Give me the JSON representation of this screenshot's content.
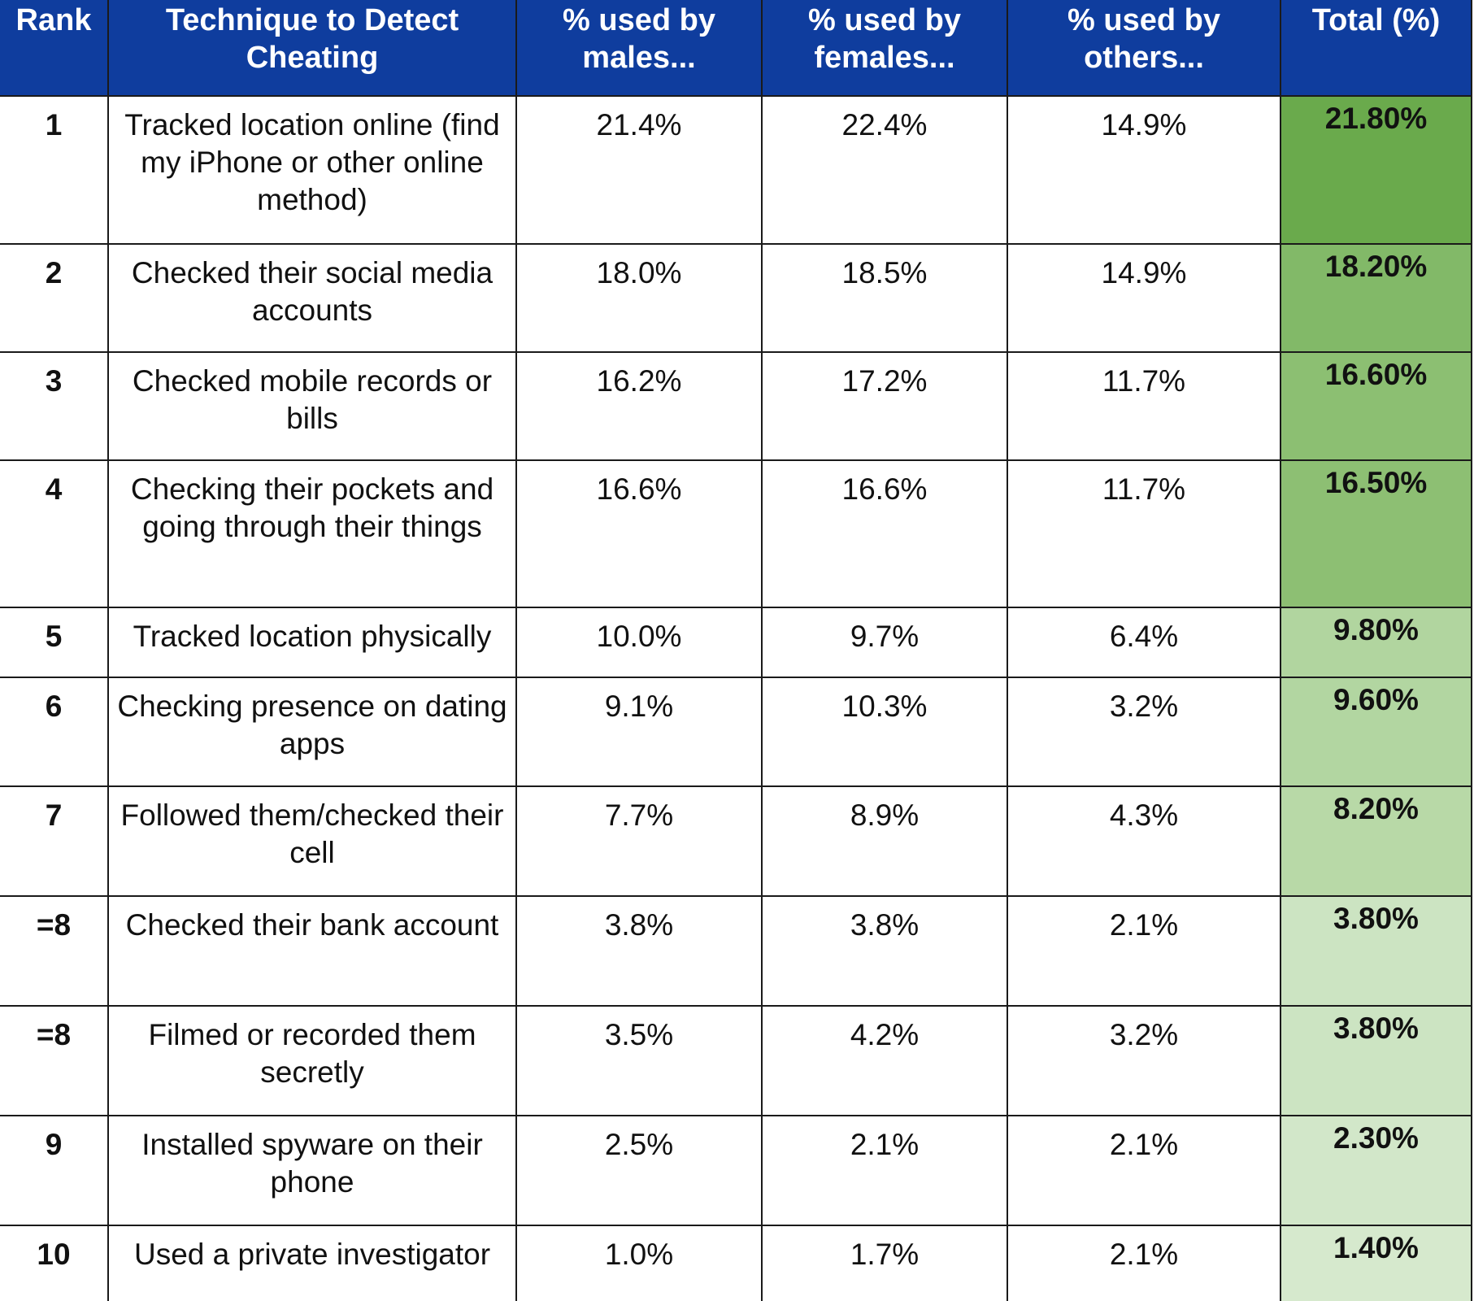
{
  "table": {
    "headers": {
      "rank": "Rank",
      "technique": "Technique to Detect Cheating",
      "males": "% used by males...",
      "females": "% used by females...",
      "others": "% used by others...",
      "total": "Total (%)"
    },
    "rows": [
      {
        "rank": "1",
        "technique": "Tracked location online (find my iPhone or other online method)",
        "males": "21.4%",
        "females": "22.4%",
        "others": "14.9%",
        "total": "21.80%",
        "total_color": "#6aaa4c"
      },
      {
        "rank": "2",
        "technique": "Checked their social media accounts",
        "males": "18.0%",
        "females": "18.5%",
        "others": "14.9%",
        "total": "18.20%",
        "total_color": "#82b968"
      },
      {
        "rank": "3",
        "technique": "Checked mobile records or bills",
        "males": "16.2%",
        "females": "17.2%",
        "others": "11.7%",
        "total": "16.60%",
        "total_color": "#8cbf72"
      },
      {
        "rank": "4",
        "technique": "Checking their pockets and going through their things",
        "males": "16.6%",
        "females": "16.6%",
        "others": "11.7%",
        "total": "16.50%",
        "total_color": "#8dbf73"
      },
      {
        "rank": "5",
        "technique": "Tracked location physically",
        "males": "10.0%",
        "females": "9.7%",
        "others": "6.4%",
        "total": "9.80%",
        "total_color": "#b1d59f"
      },
      {
        "rank": "6",
        "technique": "Checking presence on dating apps",
        "males": "9.1%",
        "females": "10.3%",
        "others": "3.2%",
        "total": "9.60%",
        "total_color": "#b2d6a1"
      },
      {
        "rank": "7",
        "technique": "Followed them/checked their cell",
        "males": "7.7%",
        "females": "8.9%",
        "others": "4.3%",
        "total": "8.20%",
        "total_color": "#b8d9a7"
      },
      {
        "rank": "=8",
        "technique": "Checked their bank account",
        "males": "3.8%",
        "females": "3.8%",
        "others": "2.1%",
        "total": "3.80%",
        "total_color": "#cce4c2"
      },
      {
        "rank": "=8",
        "technique": "Filmed or recorded them secretly",
        "males": "3.5%",
        "females": "4.2%",
        "others": "3.2%",
        "total": "3.80%",
        "total_color": "#cce4c2"
      },
      {
        "rank": "9",
        "technique": "Installed spyware on their phone",
        "males": "2.5%",
        "females": "2.1%",
        "others": "2.1%",
        "total": "2.30%",
        "total_color": "#d2e7c9"
      },
      {
        "rank": "10",
        "technique": "Used a private investigator",
        "males": "1.0%",
        "females": "1.7%",
        "others": "2.1%",
        "total": "1.40%",
        "total_color": "#d6e9cd"
      }
    ]
  }
}
